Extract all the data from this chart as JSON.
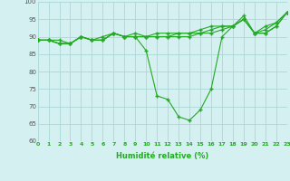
{
  "background_color": "#d4f0f0",
  "grid_color": "#aad8d8",
  "line_color": "#22aa22",
  "xlim": [
    0,
    23
  ],
  "ylim": [
    60,
    100
  ],
  "yticks": [
    60,
    65,
    70,
    75,
    80,
    85,
    90,
    95,
    100
  ],
  "xticks": [
    0,
    1,
    2,
    3,
    4,
    5,
    6,
    7,
    8,
    9,
    10,
    11,
    12,
    13,
    14,
    15,
    16,
    17,
    18,
    19,
    20,
    21,
    22,
    23
  ],
  "xlabel": "Humidité relative (%)",
  "lines": [
    [
      89,
      89,
      88,
      88,
      90,
      89,
      89,
      91,
      90,
      90,
      86,
      73,
      72,
      67,
      66,
      69,
      75,
      90,
      93,
      96,
      91,
      91,
      93,
      97
    ],
    [
      89,
      89,
      88,
      88,
      90,
      89,
      89,
      91,
      90,
      90,
      90,
      90,
      90,
      90,
      90,
      91,
      91,
      92,
      93,
      95,
      91,
      91,
      93,
      97
    ],
    [
      89,
      89,
      88,
      88,
      90,
      89,
      89,
      91,
      90,
      90,
      90,
      90,
      90,
      91,
      91,
      91,
      92,
      93,
      93,
      95,
      91,
      92,
      94,
      97
    ],
    [
      89,
      89,
      89,
      88,
      90,
      89,
      90,
      91,
      90,
      91,
      90,
      91,
      91,
      91,
      91,
      92,
      93,
      93,
      93,
      95,
      91,
      93,
      94,
      97
    ]
  ]
}
